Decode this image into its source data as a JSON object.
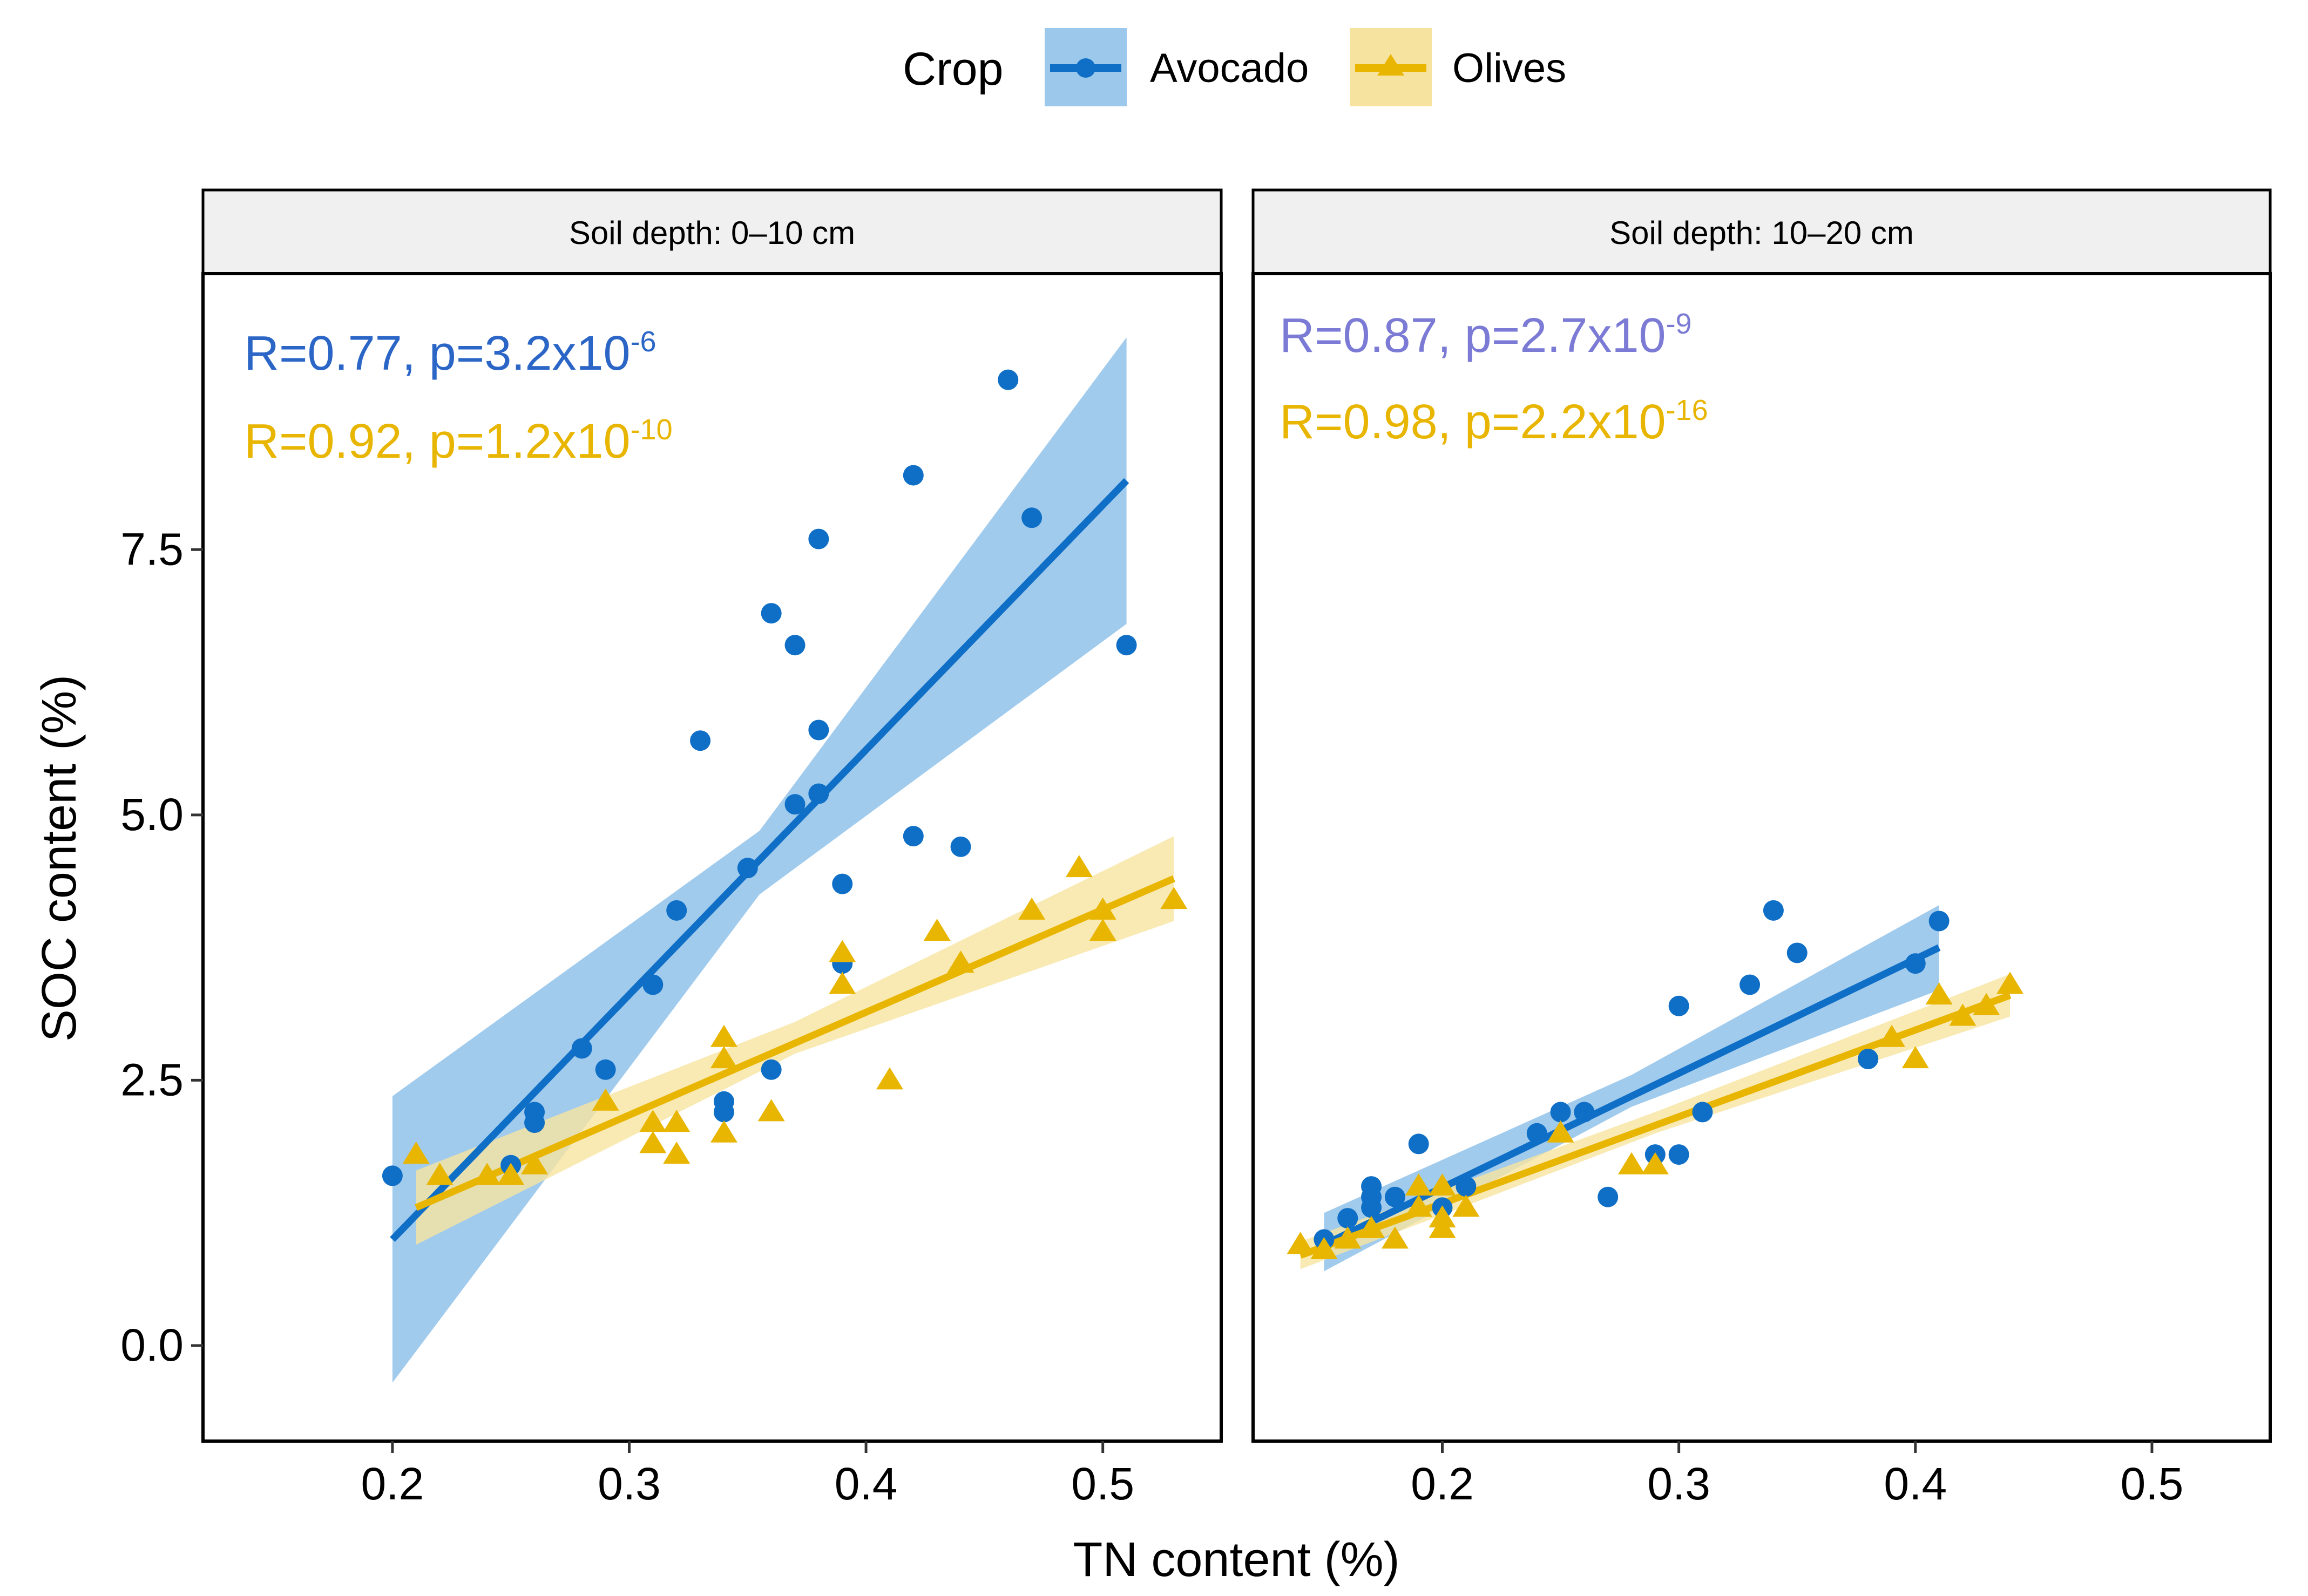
{
  "chart_data": {
    "type": "scatter",
    "legend": {
      "title": "Crop",
      "placement": "top",
      "entries": [
        {
          "name": "Avocado",
          "color": "#0f6fc6",
          "band_color": "#9cc8ec",
          "marker": "circle"
        },
        {
          "name": "Olives",
          "color": "#e8b500",
          "band_color": "#f7e3a0",
          "marker": "triangle"
        }
      ]
    },
    "xlabel": "TN content (%)",
    "ylabel": "SOC content (%)",
    "xlim": [
      0.12,
      0.55
    ],
    "ylim": [
      -0.9,
      10.1
    ],
    "xticks": [
      0.2,
      0.3,
      0.4,
      0.5
    ],
    "xtick_labels": [
      "0.2",
      "0.3",
      "0.4",
      "0.5"
    ],
    "yticks": [
      0.0,
      2.5,
      5.0,
      7.5
    ],
    "ytick_labels": [
      "0.0",
      "2.5",
      "5.0",
      "7.5"
    ],
    "panels": [
      {
        "title": "Soil depth: 0–10 cm",
        "annotations": [
          {
            "series": "Avocado",
            "base": "R=0.77, p=3.2x10",
            "exponent": "-6",
            "color": "#2b66c7"
          },
          {
            "series": "Olives",
            "base": "R=0.92, p=1.2x10",
            "exponent": "-10",
            "color": "#e8b500"
          }
        ],
        "series": [
          {
            "name": "Avocado",
            "points": [
              [
                0.2,
                1.6
              ],
              [
                0.26,
                2.2
              ],
              [
                0.26,
                2.1
              ],
              [
                0.28,
                2.8
              ],
              [
                0.29,
                2.6
              ],
              [
                0.31,
                3.4
              ],
              [
                0.32,
                4.1
              ],
              [
                0.33,
                5.7
              ],
              [
                0.34,
                2.3
              ],
              [
                0.34,
                2.2
              ],
              [
                0.35,
                4.5
              ],
              [
                0.36,
                6.9
              ],
              [
                0.36,
                2.6
              ],
              [
                0.37,
                6.6
              ],
              [
                0.37,
                5.1
              ],
              [
                0.38,
                7.6
              ],
              [
                0.38,
                5.8
              ],
              [
                0.38,
                5.2
              ],
              [
                0.39,
                4.35
              ],
              [
                0.39,
                3.6
              ],
              [
                0.42,
                8.2
              ],
              [
                0.42,
                4.8
              ],
              [
                0.44,
                4.7
              ],
              [
                0.46,
                9.1
              ],
              [
                0.47,
                7.8
              ],
              [
                0.51,
                6.6
              ],
              [
                0.25,
                1.7
              ]
            ],
            "fit": {
              "x": [
                0.2,
                0.51
              ],
              "y": [
                1.0,
                8.15
              ]
            },
            "band": {
              "x": [
                0.2,
                0.355,
                0.51
              ],
              "lower": [
                -0.35,
                4.25,
                6.8
              ],
              "upper": [
                2.35,
                4.85,
                9.5
              ]
            }
          },
          {
            "name": "Olives",
            "points": [
              [
                0.21,
                1.8
              ],
              [
                0.22,
                1.6
              ],
              [
                0.24,
                1.6
              ],
              [
                0.25,
                1.6
              ],
              [
                0.26,
                1.7
              ],
              [
                0.29,
                2.3
              ],
              [
                0.31,
                1.9
              ],
              [
                0.31,
                2.1
              ],
              [
                0.32,
                1.8
              ],
              [
                0.32,
                2.1
              ],
              [
                0.34,
                2.0
              ],
              [
                0.34,
                2.7
              ],
              [
                0.34,
                2.9
              ],
              [
                0.36,
                2.2
              ],
              [
                0.39,
                3.4
              ],
              [
                0.39,
                3.7
              ],
              [
                0.41,
                2.5
              ],
              [
                0.43,
                3.9
              ],
              [
                0.44,
                3.6
              ],
              [
                0.47,
                4.1
              ],
              [
                0.49,
                4.5
              ],
              [
                0.5,
                3.9
              ],
              [
                0.5,
                4.1
              ],
              [
                0.53,
                4.2
              ]
            ],
            "fit": {
              "x": [
                0.21,
                0.53
              ],
              "y": [
                1.3,
                4.4
              ]
            },
            "band": {
              "x": [
                0.21,
                0.37,
                0.53
              ],
              "lower": [
                0.95,
                2.75,
                4.0
              ],
              "upper": [
                1.65,
                3.05,
                4.8
              ]
            }
          }
        ]
      },
      {
        "title": "Soil depth: 10–20 cm",
        "annotations": [
          {
            "series": "Avocado",
            "base": "R=0.87, p=2.7x10",
            "exponent": "-9",
            "color": "#7b7bd6"
          },
          {
            "series": "Olives",
            "base": "R=0.98, p=2.2x10",
            "exponent": "-16",
            "color": "#e8b500"
          }
        ],
        "series": [
          {
            "name": "Avocado",
            "points": [
              [
                0.15,
                1.0
              ],
              [
                0.16,
                1.2
              ],
              [
                0.17,
                1.5
              ],
              [
                0.17,
                1.4
              ],
              [
                0.17,
                1.3
              ],
              [
                0.18,
                1.4
              ],
              [
                0.19,
                1.9
              ],
              [
                0.2,
                1.3
              ],
              [
                0.21,
                1.5
              ],
              [
                0.24,
                2.0
              ],
              [
                0.25,
                2.2
              ],
              [
                0.26,
                2.2
              ],
              [
                0.27,
                1.4
              ],
              [
                0.29,
                1.8
              ],
              [
                0.3,
                1.8
              ],
              [
                0.3,
                3.2
              ],
              [
                0.31,
                2.2
              ],
              [
                0.33,
                3.4
              ],
              [
                0.34,
                4.1
              ],
              [
                0.35,
                3.7
              ],
              [
                0.38,
                2.7
              ],
              [
                0.4,
                3.6
              ],
              [
                0.41,
                4.0
              ]
            ],
            "fit": {
              "x": [
                0.15,
                0.41
              ],
              "y": [
                0.95,
                3.75
              ]
            },
            "band": {
              "x": [
                0.15,
                0.28,
                0.41
              ],
              "lower": [
                0.7,
                2.25,
                3.35
              ],
              "upper": [
                1.25,
                2.55,
                4.15
              ]
            }
          },
          {
            "name": "Olives",
            "points": [
              [
                0.14,
                0.95
              ],
              [
                0.15,
                0.9
              ],
              [
                0.16,
                1.0
              ],
              [
                0.17,
                1.1
              ],
              [
                0.18,
                1.0
              ],
              [
                0.19,
                1.5
              ],
              [
                0.19,
                1.3
              ],
              [
                0.2,
                1.5
              ],
              [
                0.2,
                1.2
              ],
              [
                0.2,
                1.1
              ],
              [
                0.21,
                1.3
              ],
              [
                0.25,
                2.0
              ],
              [
                0.28,
                1.7
              ],
              [
                0.29,
                1.7
              ],
              [
                0.39,
                2.9
              ],
              [
                0.4,
                2.7
              ],
              [
                0.41,
                3.3
              ],
              [
                0.42,
                3.1
              ],
              [
                0.43,
                3.2
              ],
              [
                0.44,
                3.4
              ]
            ],
            "fit": {
              "x": [
                0.14,
                0.44
              ],
              "y": [
                0.85,
                3.3
              ]
            },
            "band": {
              "x": [
                0.14,
                0.29,
                0.44
              ],
              "lower": [
                0.72,
                2.0,
                3.1
              ],
              "upper": [
                0.98,
                2.2,
                3.5
              ]
            }
          }
        ]
      }
    ]
  }
}
